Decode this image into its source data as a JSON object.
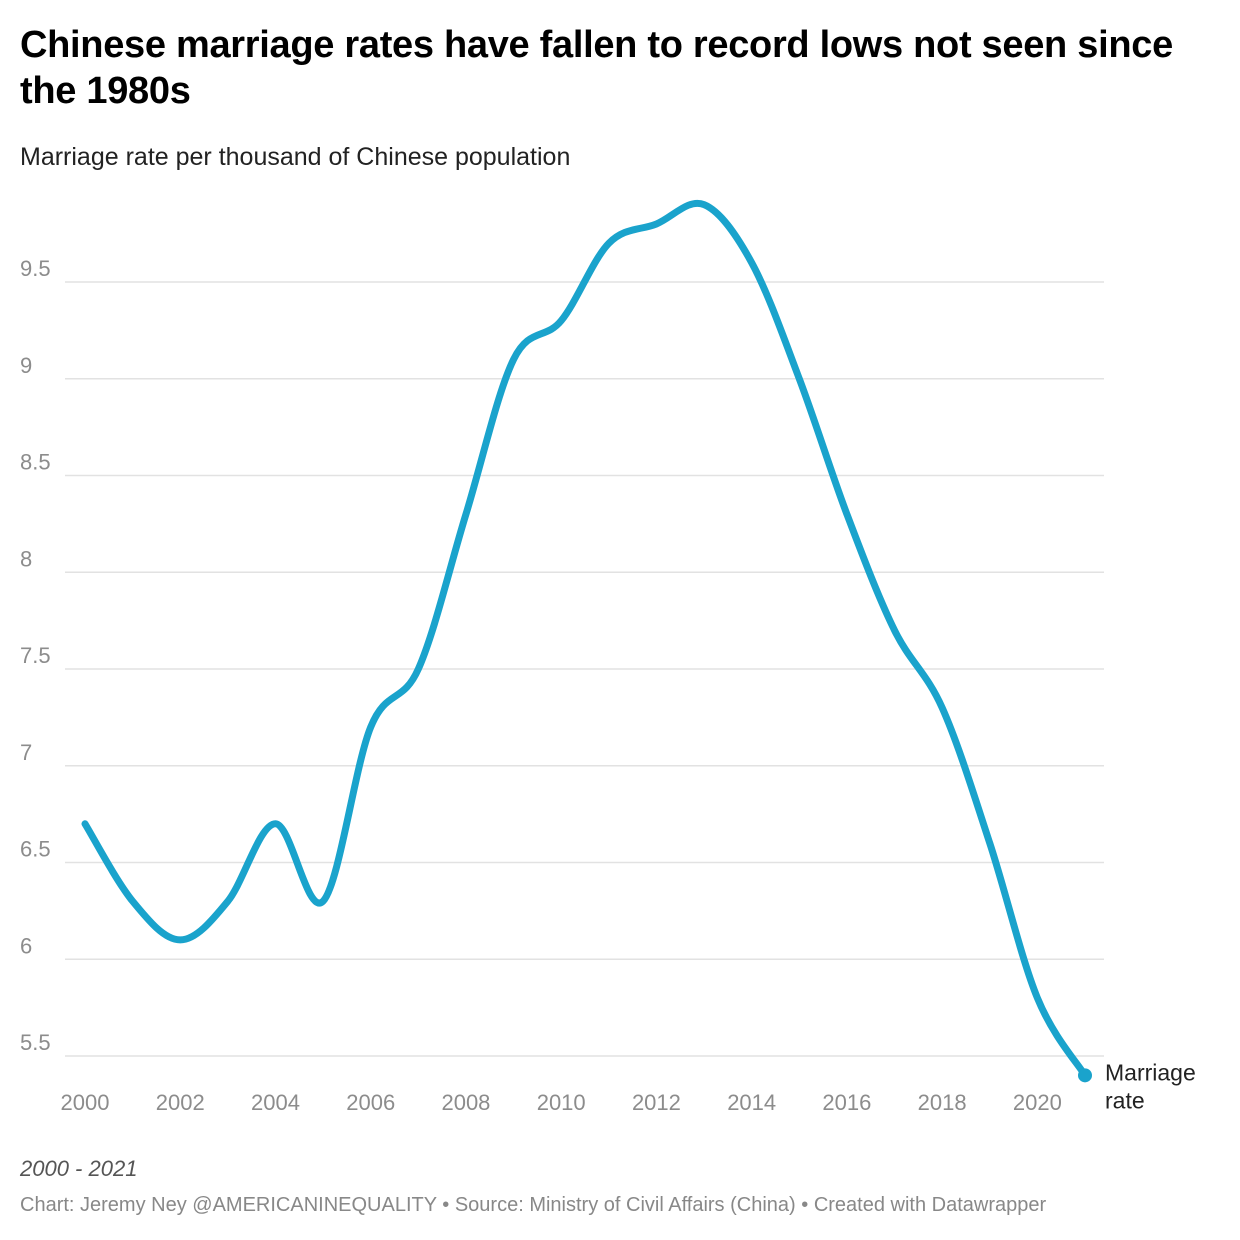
{
  "title": "Chinese marriage rates have fallen to record lows not seen since the 1980s",
  "subtitle": "Marriage rate per thousand of Chinese population",
  "range_note": "2000 - 2021",
  "footer": {
    "chart_credit": "Chart: Jeremy Ney @AMERICANINEQUALITY",
    "source": "Source: Ministry of Civil Affairs (China)",
    "tool": "Created with Datawrapper",
    "separator": "•"
  },
  "colors": {
    "line": "#1aa3cc",
    "grid": "#e2e2e2",
    "tick_text": "#8c8c8c"
  },
  "chart_data": {
    "type": "line",
    "title": "Chinese marriage rates have fallen to record lows not seen since the 1980s",
    "subtitle": "Marriage rate per thousand of Chinese population",
    "xlabel": "",
    "ylabel": "",
    "x": [
      2000,
      2001,
      2002,
      2003,
      2004,
      2005,
      2006,
      2007,
      2008,
      2009,
      2010,
      2011,
      2012,
      2013,
      2014,
      2015,
      2016,
      2017,
      2018,
      2019,
      2020,
      2021
    ],
    "series": [
      {
        "name": "Marriage rate",
        "values": [
          6.7,
          6.3,
          6.1,
          6.3,
          6.7,
          6.3,
          7.2,
          7.5,
          8.3,
          9.1,
          9.3,
          9.7,
          9.8,
          9.9,
          9.6,
          9.0,
          8.3,
          7.7,
          7.3,
          6.6,
          5.8,
          5.4
        ]
      }
    ],
    "xlim": [
      2000,
      2021
    ],
    "ylim": [
      5.4,
      9.9
    ],
    "x_ticks": [
      2000,
      2002,
      2004,
      2006,
      2008,
      2010,
      2012,
      2014,
      2016,
      2018,
      2020
    ],
    "y_ticks": [
      5.5,
      6,
      6.5,
      7,
      7.5,
      8,
      8.5,
      9,
      9.5
    ],
    "y_tick_labels": [
      "5.5",
      "6",
      "6.5",
      "7",
      "7.5",
      "8",
      "8.5",
      "9",
      "9.5"
    ],
    "grid": "horizontal",
    "legend": "none",
    "end_label": "Marriage rate"
  }
}
